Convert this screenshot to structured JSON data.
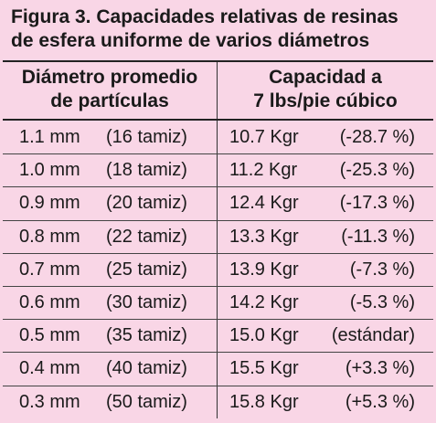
{
  "figure": {
    "title_line1": "Figura 3. Capacidades relativas de resinas",
    "title_line2": "de esfera uniforme de varios diámetros"
  },
  "table": {
    "headers": {
      "left_line1": "Diámetro promedio",
      "left_line2": "de partículas",
      "right_line1": "Capacidad a",
      "right_line2": "7 lbs/pie cúbico"
    },
    "rows": [
      {
        "diameter": "1.1 mm",
        "mesh": "(16 tamiz)",
        "capacity": "10.7 Kgr",
        "change": "(-28.7 %)"
      },
      {
        "diameter": "1.0 mm",
        "mesh": "(18 tamiz)",
        "capacity": "11.2 Kgr",
        "change": "(-25.3 %)"
      },
      {
        "diameter": "0.9 mm",
        "mesh": "(20 tamiz)",
        "capacity": "12.4 Kgr",
        "change": "(-17.3 %)"
      },
      {
        "diameter": "0.8 mm",
        "mesh": "(22 tamiz)",
        "capacity": "13.3 Kgr",
        "change": "(-11.3 %)"
      },
      {
        "diameter": "0.7 mm",
        "mesh": "(25 tamiz)",
        "capacity": "13.9 Kgr",
        "change": "(-7.3 %)"
      },
      {
        "diameter": "0.6 mm",
        "mesh": "(30 tamiz)",
        "capacity": "14.2 Kgr",
        "change": "(-5.3 %)"
      },
      {
        "diameter": "0.5 mm",
        "mesh": "(35 tamiz)",
        "capacity": "15.0 Kgr",
        "change": "(estándar)"
      },
      {
        "diameter": "0.4 mm",
        "mesh": "(40 tamiz)",
        "capacity": "15.5 Kgr",
        "change": "(+3.3 %)"
      },
      {
        "diameter": "0.3 mm",
        "mesh": "(50 tamiz)",
        "capacity": "15.8 Kgr",
        "change": "(+5.3 %)"
      }
    ]
  },
  "colors": {
    "background": "#f9d6e6",
    "text": "#1a1a1a",
    "rule": "#222222"
  }
}
